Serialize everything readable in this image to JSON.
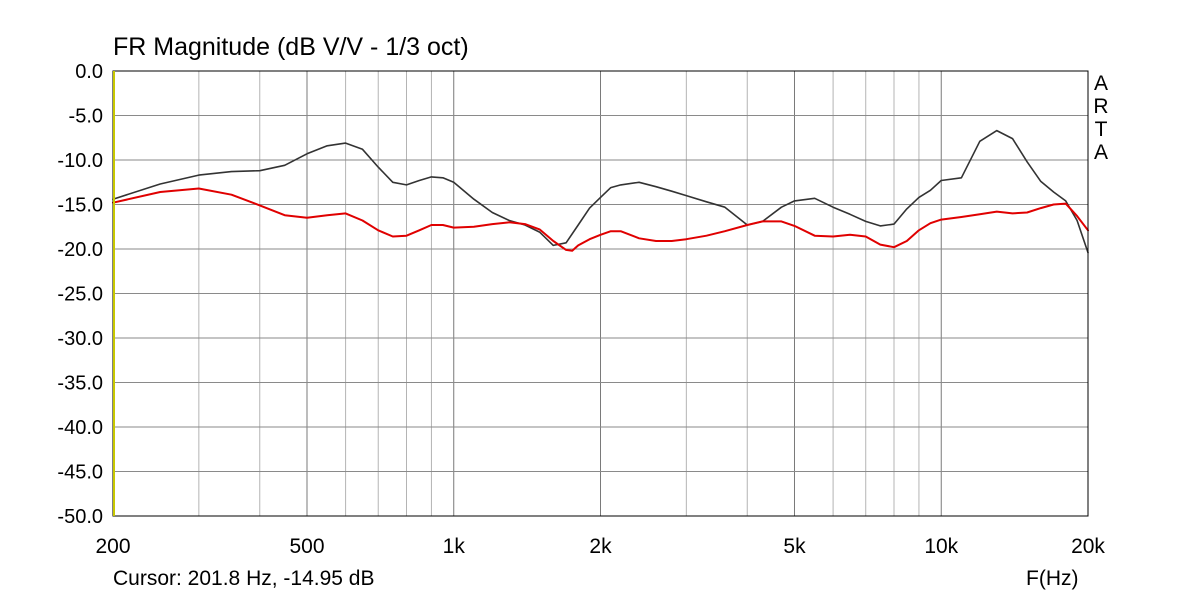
{
  "chart_data": {
    "type": "line",
    "title": "FR Magnitude (dB V/V - 1/3 oct)",
    "xlabel": "F(Hz)",
    "ylabel": "",
    "x_scale": "log",
    "xlim": [
      200,
      20000
    ],
    "ylim": [
      -50,
      0
    ],
    "grid": true,
    "y_ticks": [
      "0.0",
      "-5.0",
      "-10.0",
      "-15.0",
      "-20.0",
      "-25.0",
      "-30.0",
      "-35.0",
      "-40.0",
      "-45.0",
      "-50.0"
    ],
    "x_ticks": [
      {
        "value": 200,
        "label": "200"
      },
      {
        "value": 500,
        "label": "500"
      },
      {
        "value": 1000,
        "label": "1k"
      },
      {
        "value": 2000,
        "label": "2k"
      },
      {
        "value": 5000,
        "label": "5k"
      },
      {
        "value": 10000,
        "label": "10k"
      },
      {
        "value": 20000,
        "label": "20k"
      }
    ],
    "series": [
      {
        "color": "#333333",
        "x": [
          200,
          250,
          300,
          350,
          400,
          450,
          500,
          550,
          600,
          650,
          700,
          750,
          800,
          850,
          900,
          950,
          1000,
          1100,
          1200,
          1300,
          1400,
          1500,
          1600,
          1700,
          1800,
          1900,
          2000,
          2100,
          2200,
          2400,
          2600,
          2800,
          3000,
          3300,
          3600,
          4000,
          4300,
          4700,
          5000,
          5500,
          6000,
          6500,
          7000,
          7500,
          8000,
          8500,
          9000,
          9500,
          10000,
          11000,
          12000,
          13000,
          14000,
          15000,
          16000,
          17000,
          18000,
          19000,
          20000
        ],
        "values": [
          -14.4,
          -12.7,
          -11.7,
          -11.3,
          -11.2,
          -10.6,
          -9.3,
          -8.4,
          -8.1,
          -8.8,
          -10.8,
          -12.5,
          -12.8,
          -12.3,
          -11.9,
          -12.0,
          -12.5,
          -14.4,
          -15.9,
          -16.8,
          -17.3,
          -18.1,
          -19.6,
          -19.3,
          -17.3,
          -15.4,
          -14.2,
          -13.1,
          -12.8,
          -12.5,
          -13.0,
          -13.5,
          -14.0,
          -14.7,
          -15.3,
          -17.3,
          -16.9,
          -15.3,
          -14.6,
          -14.3,
          -15.3,
          -16.1,
          -16.9,
          -17.4,
          -17.2,
          -15.5,
          -14.2,
          -13.4,
          -12.3,
          -12.0,
          -7.9,
          -6.7,
          -7.6,
          -10.2,
          -12.4,
          -13.6,
          -14.6,
          -16.8,
          -20.4
        ]
      },
      {
        "color": "#e00000",
        "x": [
          200,
          250,
          300,
          350,
          400,
          450,
          500,
          550,
          600,
          650,
          700,
          750,
          800,
          850,
          900,
          950,
          1000,
          1100,
          1200,
          1300,
          1400,
          1500,
          1600,
          1700,
          1750,
          1800,
          1900,
          2000,
          2100,
          2200,
          2400,
          2600,
          2800,
          3000,
          3300,
          3600,
          4000,
          4300,
          4700,
          5000,
          5500,
          6000,
          6500,
          7000,
          7500,
          8000,
          8500,
          9000,
          9500,
          10000,
          11000,
          12000,
          13000,
          14000,
          15000,
          16000,
          17000,
          18000,
          19000,
          20000
        ],
        "values": [
          -14.8,
          -13.6,
          -13.2,
          -13.9,
          -15.1,
          -16.2,
          -16.5,
          -16.2,
          -16.0,
          -16.8,
          -17.9,
          -18.6,
          -18.5,
          -17.9,
          -17.3,
          -17.3,
          -17.6,
          -17.5,
          -17.2,
          -17.0,
          -17.2,
          -17.8,
          -19.1,
          -20.1,
          -20.2,
          -19.6,
          -18.9,
          -18.4,
          -18.0,
          -18.0,
          -18.8,
          -19.1,
          -19.1,
          -18.9,
          -18.5,
          -18.0,
          -17.3,
          -16.9,
          -16.9,
          -17.4,
          -18.5,
          -18.6,
          -18.4,
          -18.6,
          -19.5,
          -19.8,
          -19.1,
          -17.9,
          -17.1,
          -16.7,
          -16.4,
          -16.1,
          -15.8,
          -16.0,
          -15.9,
          -15.4,
          -15.0,
          -14.9,
          -16.3,
          -17.9
        ]
      }
    ]
  },
  "cursor_readout": "Cursor: 201.8 Hz, -14.95 dB",
  "watermark": [
    "A",
    "R",
    "T",
    "A"
  ],
  "colors": {
    "axis_marker": "#c8c800",
    "grid": "#a0a0a0",
    "frame": "#000000"
  }
}
